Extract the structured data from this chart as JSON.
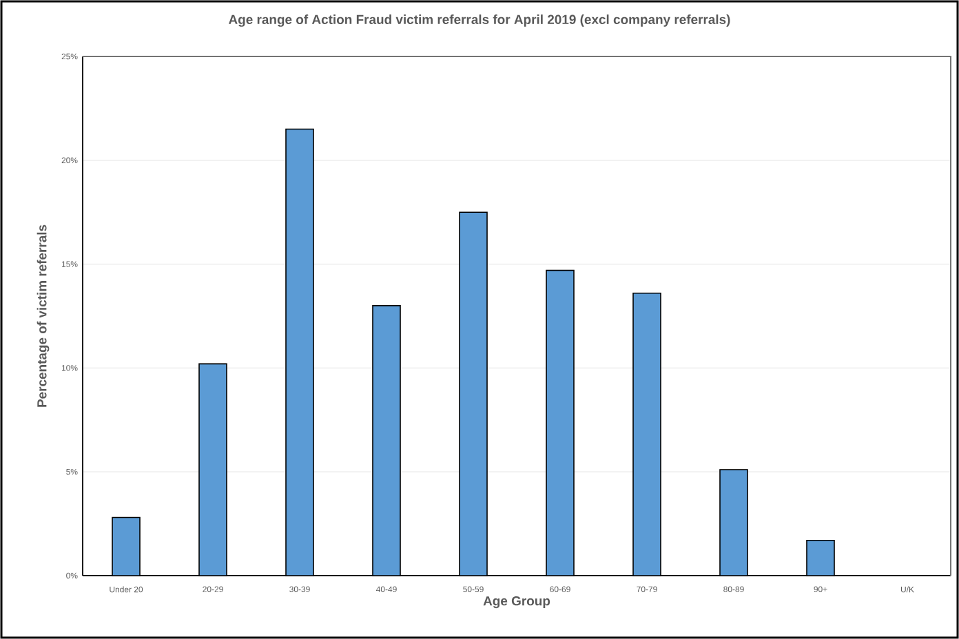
{
  "chart_data": {
    "type": "bar",
    "title": "Age range of Action Fraud victim referrals for April 2019 (excl company referrals)",
    "xlabel": "Age Group",
    "ylabel": "Percentage of victim referrals",
    "categories": [
      "Under 20",
      "20-29",
      "30-39",
      "40-49",
      "50-59",
      "60-69",
      "70-79",
      "80-89",
      "90+",
      "U/K"
    ],
    "values": [
      2.8,
      10.2,
      21.5,
      13.0,
      17.5,
      14.7,
      13.6,
      5.1,
      1.7,
      null
    ],
    "color": "#5b9bd5",
    "ylim": [
      0,
      25
    ],
    "yticks": [
      {
        "value": 0,
        "label": "0%"
      },
      {
        "value": 5,
        "label": "5%"
      },
      {
        "value": 10,
        "label": "10%"
      },
      {
        "value": 15,
        "label": "15%"
      },
      {
        "value": 20,
        "label": "20%"
      },
      {
        "value": 25,
        "label": "25%"
      }
    ],
    "grid": "y"
  }
}
